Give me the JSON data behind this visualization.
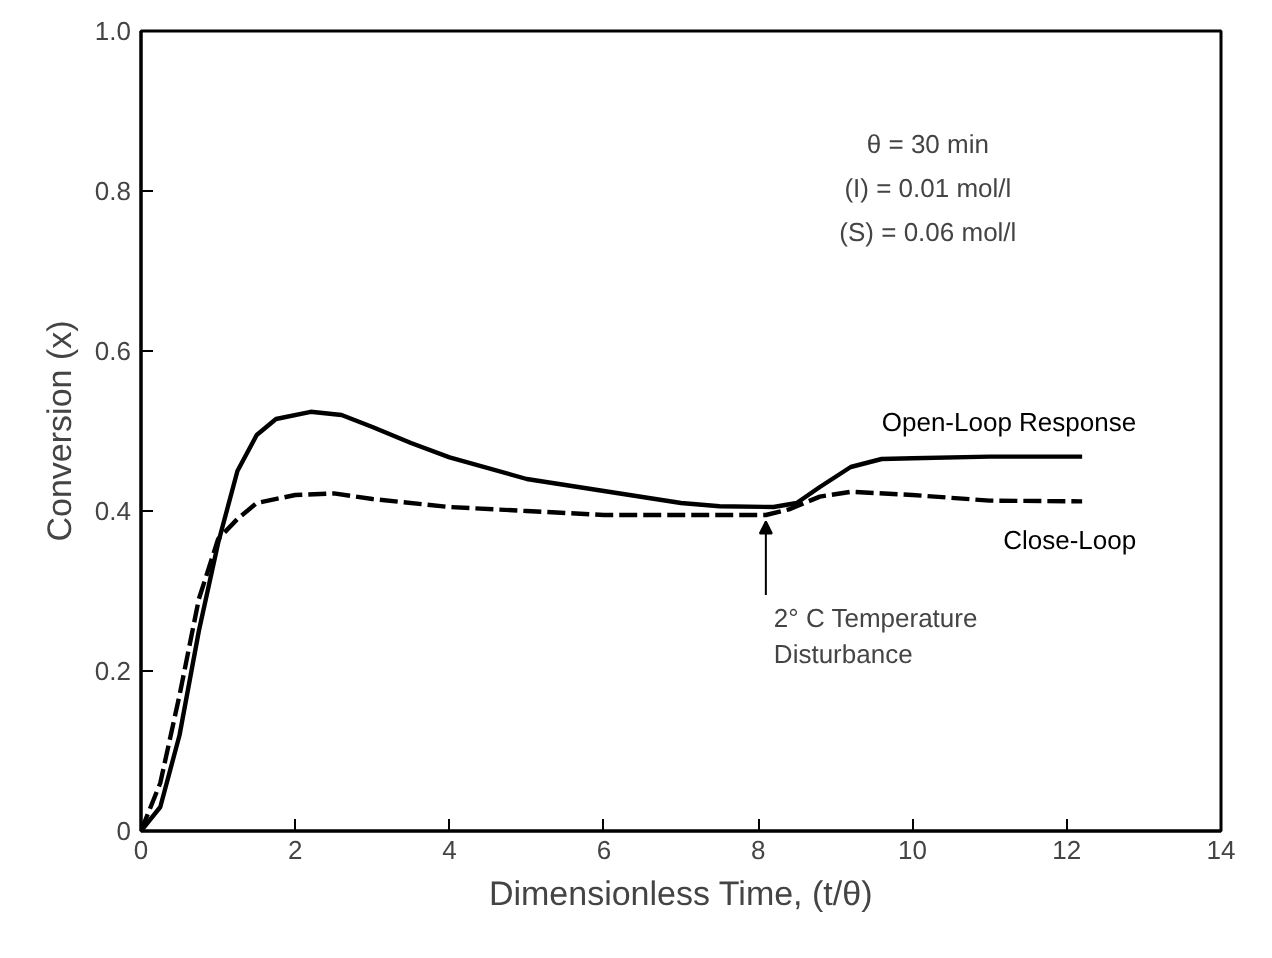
{
  "chart_data": {
    "type": "line",
    "xlabel": "Dimensionless Time, (t/θ)",
    "ylabel": "Conversion (x)",
    "xlim": [
      0,
      14
    ],
    "ylim": [
      0,
      1
    ],
    "xticks": [
      0,
      2,
      4,
      6,
      8,
      10,
      12,
      14
    ],
    "yticks": [
      0,
      {
        "value": 0.2,
        "label": "0.2"
      },
      {
        "value": 0.4,
        "label": "0.4"
      },
      {
        "value": 0.6,
        "label": "0.6"
      },
      {
        "value": 0.8,
        "label": "0.8"
      },
      {
        "value": 1,
        "label": "1.0"
      }
    ],
    "grid": false,
    "legend": false,
    "marker": "none",
    "series": [
      {
        "name": "Open-Loop Response",
        "color": "#000000",
        "line_style": "solid",
        "x": [
          0,
          0.25,
          0.5,
          0.75,
          1.0,
          1.25,
          1.5,
          1.75,
          2.2,
          2.6,
          3,
          3.5,
          4,
          5,
          6,
          7,
          7.5,
          8.2,
          8.5,
          8.8,
          9.2,
          9.6,
          10,
          11,
          12.2
        ],
        "values": [
          0,
          0.03,
          0.12,
          0.25,
          0.36,
          0.45,
          0.495,
          0.515,
          0.524,
          0.52,
          0.505,
          0.485,
          0.467,
          0.44,
          0.425,
          0.41,
          0.406,
          0.405,
          0.41,
          0.43,
          0.455,
          0.465,
          0.466,
          0.468,
          0.468
        ]
      },
      {
        "name": "Close-Loop",
        "color": "#000000",
        "line_style": "dashed",
        "x": [
          0,
          0.25,
          0.5,
          0.75,
          1.0,
          1.25,
          1.5,
          2,
          2.5,
          3,
          4,
          5,
          6,
          7,
          8.1,
          8.4,
          8.8,
          9.2,
          10,
          11,
          12.2
        ],
        "values": [
          0,
          0.06,
          0.17,
          0.29,
          0.365,
          0.39,
          0.41,
          0.42,
          0.422,
          0.415,
          0.405,
          0.4,
          0.395,
          0.395,
          0.395,
          0.402,
          0.418,
          0.424,
          0.42,
          0.413,
          0.412
        ]
      }
    ],
    "annotations": [
      "θ = 30 min",
      "(I) = 0.01 mol/l",
      "(S) = 0.06 mol/l",
      {
        "text": "2° C Temperature\nDisturbance",
        "x": 8.1,
        "y": 0.395
      }
    ]
  }
}
